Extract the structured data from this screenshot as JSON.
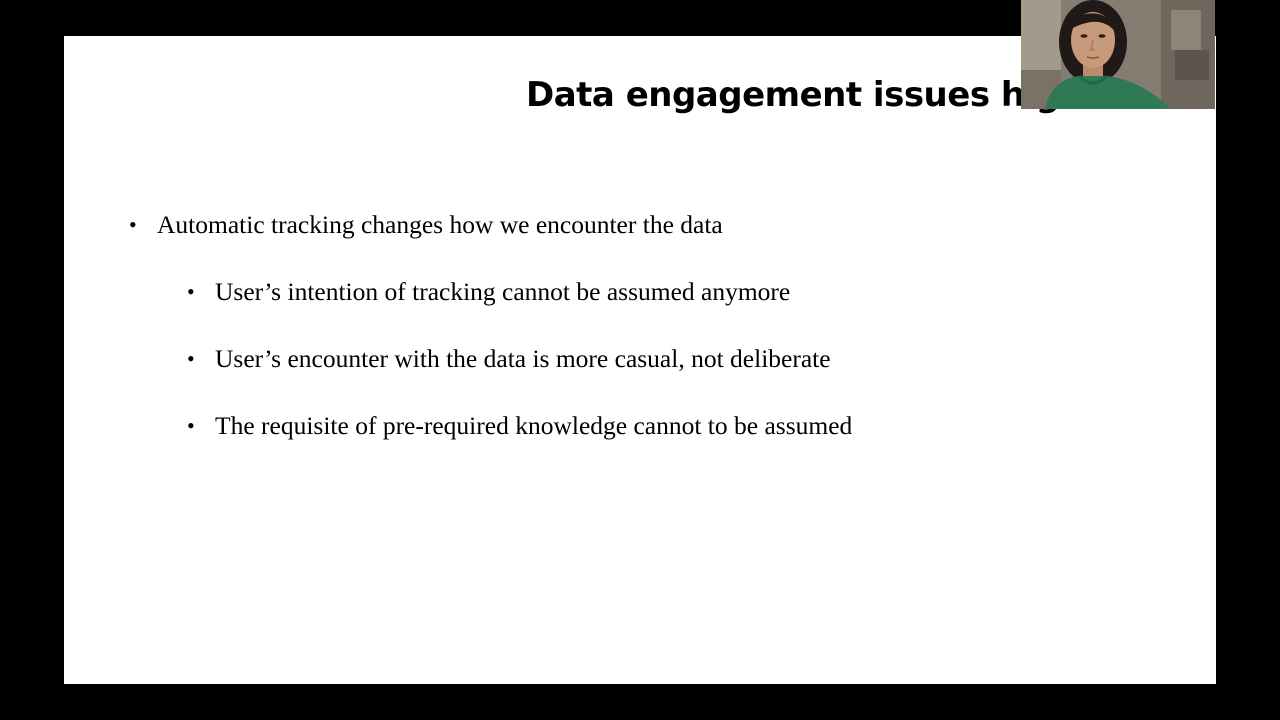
{
  "slide": {
    "title": "Data engagement issues hig",
    "bullets": [
      {
        "text": "Automatic tracking changes how we encounter the data",
        "sub": [
          "User’s intention of tracking cannot be assumed anymore",
          "User’s encounter with the data is more casual, not deliberate",
          "The requisite of pre-required knowledge cannot to be assumed"
        ]
      }
    ]
  },
  "bullet_glyph": "•",
  "webcam": {
    "icon": "person-video-icon"
  },
  "colors": {
    "background": "#000000",
    "slide": "#ffffff",
    "text": "#000000",
    "sweater": "#2f7a55"
  }
}
